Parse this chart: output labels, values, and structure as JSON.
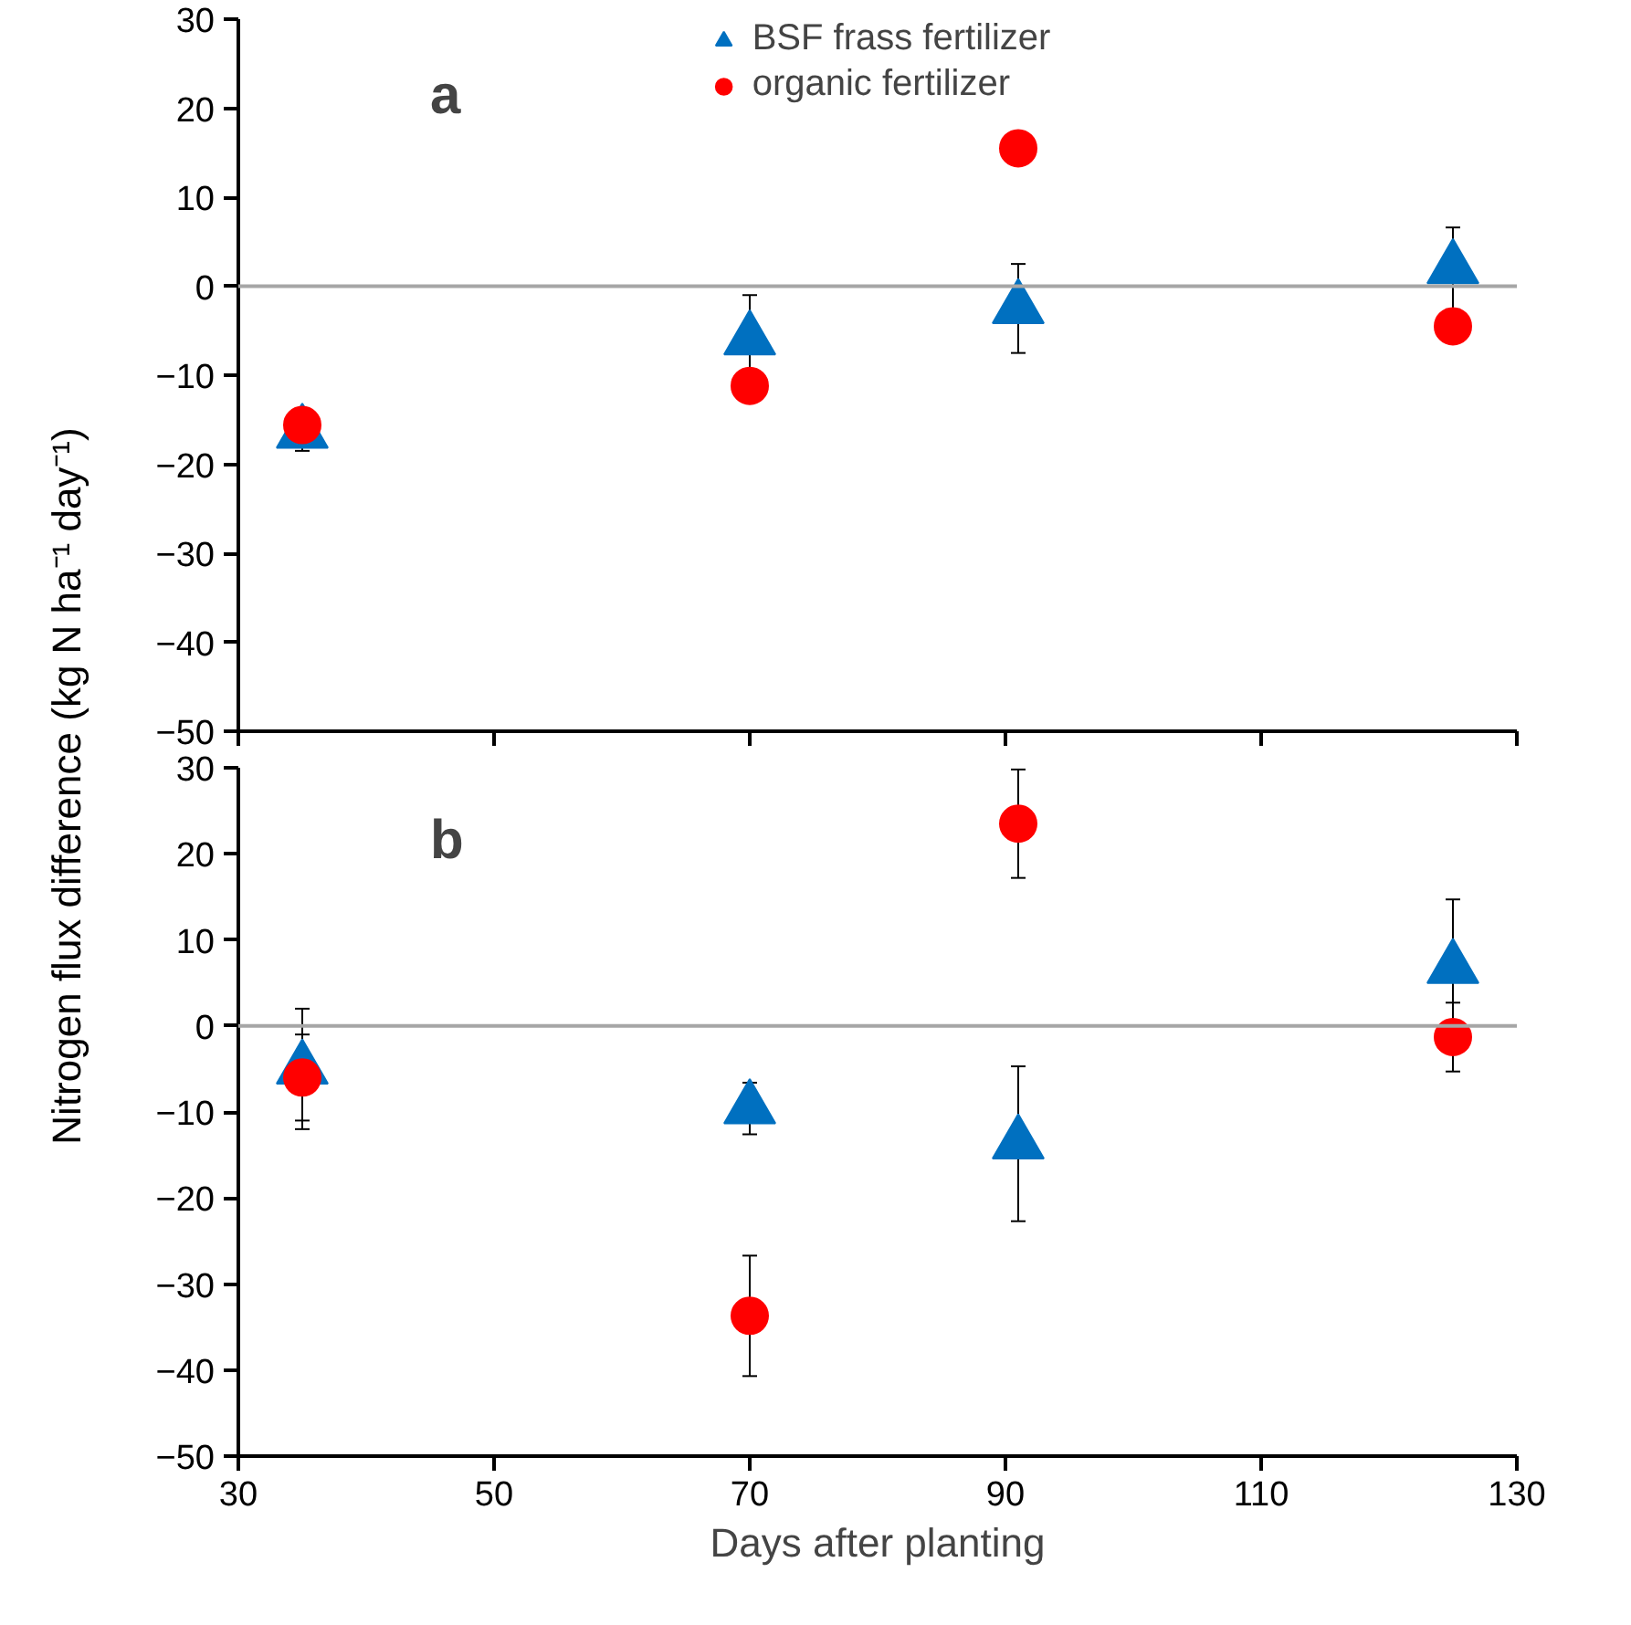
{
  "chart_data": [
    {
      "type": "scatter",
      "ylabel": "Nitrogen flux difference (kg N ha⁻¹ day⁻¹)",
      "annotations": [
        "a"
      ],
      "xlim": [
        30,
        130
      ],
      "xticks": [
        30,
        50,
        70,
        90,
        110,
        130
      ],
      "ylim": [
        -50,
        30
      ],
      "yticks": [
        -50,
        -40,
        -30,
        -20,
        -10,
        0,
        10,
        20,
        30
      ],
      "tick_labels": "y",
      "legend": "top",
      "ref_lines": [
        {
          "axis": "y",
          "value": 0,
          "color": "#a6a6a6"
        }
      ],
      "series": [
        {
          "name": "BSF frass fertilizer",
          "color": "#0070c0",
          "marker": "triangle",
          "x": [
            35,
            70,
            91,
            125
          ],
          "values": [
            -16.5,
            -6,
            -2.5,
            2
          ],
          "errors": [
            2,
            5,
            5,
            4.6
          ]
        },
        {
          "name": "organic fertilizer",
          "color": "#ff0000",
          "marker": "circle",
          "x": [
            35,
            70,
            91,
            125
          ],
          "values": [
            -15.6,
            -11.2,
            15.5,
            -4.5
          ]
        }
      ]
    },
    {
      "type": "scatter",
      "xlabel": "Days after planting",
      "annotations": [
        "b"
      ],
      "xlim": [
        30,
        130
      ],
      "xticks": [
        30,
        50,
        70,
        90,
        110,
        130
      ],
      "ylim": [
        -50,
        30
      ],
      "yticks": [
        -50,
        -40,
        -30,
        -20,
        -10,
        0,
        10,
        20,
        30
      ],
      "ref_lines": [
        {
          "axis": "y",
          "value": 0,
          "color": "#a6a6a6"
        }
      ],
      "series": [
        {
          "color": "#0070c0",
          "marker": "triangle",
          "x": [
            35,
            70,
            91,
            125
          ],
          "values": [
            -5,
            -9.6,
            -13.7,
            6.7
          ],
          "errors": [
            7,
            3,
            9,
            8
          ]
        },
        {
          "color": "#ff0000",
          "marker": "circle",
          "x": [
            35,
            70,
            91,
            125
          ],
          "values": [
            -6,
            -33.7,
            23.5,
            -1.3
          ],
          "errors": [
            5,
            7,
            6.3,
            4
          ]
        }
      ]
    }
  ]
}
